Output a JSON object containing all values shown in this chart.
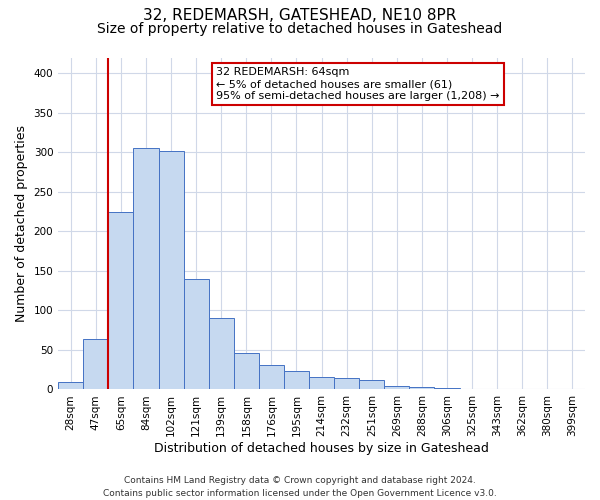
{
  "title": "32, REDEMARSH, GATESHEAD, NE10 8PR",
  "subtitle": "Size of property relative to detached houses in Gateshead",
  "xlabel": "Distribution of detached houses by size in Gateshead",
  "ylabel": "Number of detached properties",
  "bin_labels": [
    "28sqm",
    "47sqm",
    "65sqm",
    "84sqm",
    "102sqm",
    "121sqm",
    "139sqm",
    "158sqm",
    "176sqm",
    "195sqm",
    "214sqm",
    "232sqm",
    "251sqm",
    "269sqm",
    "288sqm",
    "306sqm",
    "325sqm",
    "343sqm",
    "362sqm",
    "380sqm",
    "399sqm"
  ],
  "bar_values": [
    10,
    64,
    224,
    305,
    302,
    140,
    90,
    46,
    31,
    23,
    16,
    14,
    12,
    5,
    3,
    2,
    1,
    1,
    1,
    1,
    1
  ],
  "bar_color": "#c6d9f0",
  "bar_edge_color": "#4472c4",
  "property_line_color": "#cc0000",
  "annotation_title": "32 REDEMARSH: 64sqm",
  "annotation_line1": "← 5% of detached houses are smaller (61)",
  "annotation_line2": "95% of semi-detached houses are larger (1,208) →",
  "annotation_box_color": "#ffffff",
  "annotation_box_edge_color": "#cc0000",
  "ylim": [
    0,
    420
  ],
  "yticks": [
    0,
    50,
    100,
    150,
    200,
    250,
    300,
    350,
    400
  ],
  "footer_line1": "Contains HM Land Registry data © Crown copyright and database right 2024.",
  "footer_line2": "Contains public sector information licensed under the Open Government Licence v3.0.",
  "background_color": "#ffffff",
  "grid_color": "#d0d8e8",
  "title_fontsize": 11,
  "subtitle_fontsize": 10,
  "axis_label_fontsize": 9,
  "tick_fontsize": 7.5,
  "annotation_fontsize": 8,
  "footer_fontsize": 6.5
}
